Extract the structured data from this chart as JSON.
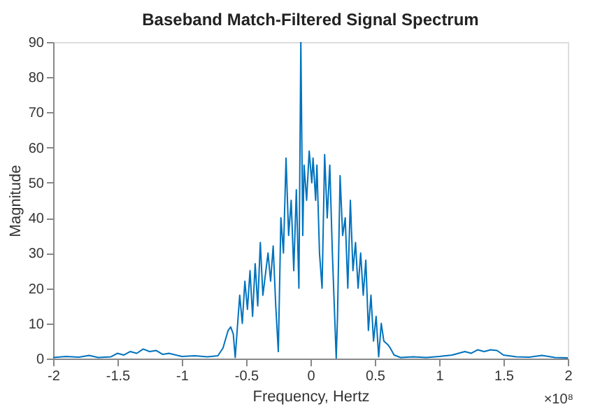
{
  "chart_data": {
    "type": "line",
    "title": "Baseband Match-Filtered Signal Spectrum",
    "xlabel": "Frequency, Hertz",
    "ylabel": "Magnitude",
    "annotations": [
      "×10⁸"
    ],
    "xlim": [
      -2,
      2
    ],
    "xticks": [
      -2,
      -1.5,
      -1,
      -0.5,
      0,
      0.5,
      1,
      1.5,
      2
    ],
    "ylim": [
      0,
      90
    ],
    "yticks": [
      0,
      10,
      20,
      30,
      40,
      50,
      60,
      70,
      80,
      90
    ],
    "grid": false,
    "legend": false,
    "line_style": "solid",
    "marker": "none",
    "series": [
      {
        "color": "#0072bd",
        "x": [
          -2.0,
          -1.9,
          -1.8,
          -1.72,
          -1.65,
          -1.55,
          -1.5,
          -1.45,
          -1.4,
          -1.35,
          -1.3,
          -1.25,
          -1.2,
          -1.15,
          -1.1,
          -1.0,
          -0.9,
          -0.8,
          -0.72,
          -0.68,
          -0.64,
          -0.62,
          -0.6,
          -0.585,
          -0.57,
          -0.55,
          -0.53,
          -0.51,
          -0.49,
          -0.47,
          -0.45,
          -0.43,
          -0.41,
          -0.39,
          -0.37,
          -0.35,
          -0.33,
          -0.31,
          -0.29,
          -0.27,
          -0.25,
          -0.23,
          -0.21,
          -0.19,
          -0.17,
          -0.15,
          -0.13,
          -0.11,
          -0.09,
          -0.075,
          -0.06,
          -0.05,
          -0.03,
          -0.01,
          0.01,
          0.02,
          0.04,
          0.05,
          0.07,
          0.09,
          0.11,
          0.13,
          0.15,
          0.17,
          0.19,
          0.2,
          0.21,
          0.23,
          0.25,
          0.27,
          0.29,
          0.31,
          0.33,
          0.35,
          0.37,
          0.39,
          0.41,
          0.43,
          0.45,
          0.47,
          0.49,
          0.51,
          0.53,
          0.55,
          0.57,
          0.6,
          0.62,
          0.65,
          0.7,
          0.8,
          0.9,
          1.0,
          1.1,
          1.2,
          1.25,
          1.3,
          1.35,
          1.4,
          1.45,
          1.5,
          1.6,
          1.7,
          1.8,
          1.9,
          2.0
        ],
        "values": [
          0.3,
          0.6,
          0.4,
          0.9,
          0.3,
          0.5,
          1.5,
          1.0,
          2.0,
          1.5,
          2.7,
          2.0,
          2.3,
          1.2,
          1.5,
          0.6,
          0.8,
          0.5,
          0.8,
          3,
          8,
          9,
          7,
          0.3,
          8,
          18,
          10,
          22,
          14,
          25,
          12,
          27,
          15,
          33,
          18,
          24,
          30,
          22,
          32,
          15,
          2,
          40,
          30,
          57,
          35,
          45,
          25,
          48,
          20,
          90,
          35,
          55,
          45,
          59,
          50,
          57,
          45,
          55,
          30,
          20,
          58,
          40,
          55,
          30,
          10,
          0,
          12,
          52,
          35,
          40,
          20,
          45,
          25,
          33,
          20,
          30,
          18,
          28,
          8,
          18,
          5,
          12,
          0.5,
          10,
          5,
          4,
          3,
          1,
          0.3,
          0.5,
          0.3,
          0.6,
          1.0,
          2.0,
          1.5,
          2.5,
          2.0,
          2.5,
          2.3,
          1.0,
          0.5,
          0.4,
          0.9,
          0.3,
          0.2
        ]
      }
    ]
  }
}
